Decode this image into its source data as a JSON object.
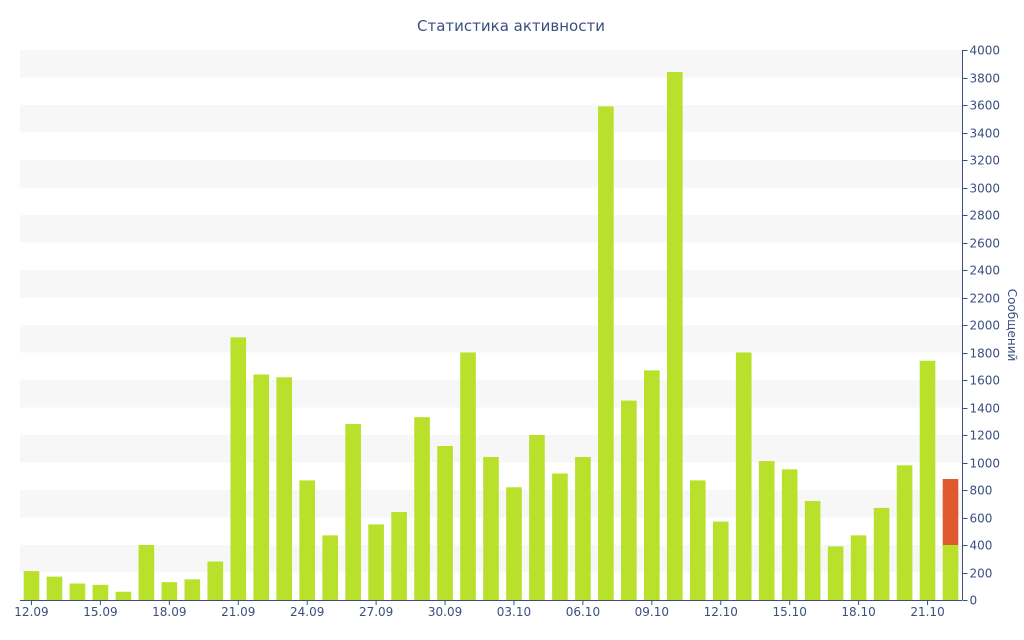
{
  "chart_data": {
    "type": "bar",
    "title": "Статистика активности",
    "xlabel": "",
    "ylabel": "Сообщений",
    "ylim": [
      0,
      4000
    ],
    "y_ticks": [
      0,
      200,
      400,
      600,
      800,
      1000,
      1200,
      1400,
      1600,
      1800,
      2000,
      2200,
      2400,
      2600,
      2800,
      3000,
      3200,
      3400,
      3600,
      3800,
      4000
    ],
    "y_axis_side": "right",
    "grid": "horizontal alternating bands",
    "legend": "none",
    "categories": [
      "12.09",
      "13.09",
      "14.09",
      "15.09",
      "16.09",
      "17.09",
      "18.09",
      "19.09",
      "20.09",
      "21.09",
      "22.09",
      "23.09",
      "24.09",
      "25.09",
      "26.09",
      "27.09",
      "28.09",
      "29.09",
      "30.09",
      "01.10",
      "02.10",
      "03.10",
      "04.10",
      "05.10",
      "06.10",
      "07.10",
      "08.10",
      "09.10",
      "10.10",
      "11.10",
      "12.10",
      "13.10",
      "14.10",
      "15.10",
      "16.10",
      "17.10",
      "18.10",
      "19.10",
      "20.10",
      "21.10",
      "22.10"
    ],
    "x_tick_labels": [
      "12.09",
      "15.09",
      "18.09",
      "21.09",
      "24.09",
      "27.09",
      "30.09",
      "03.10",
      "06.10",
      "09.10",
      "12.10",
      "15.10",
      "18.10",
      "21.10"
    ],
    "series": [
      {
        "values": [
          210,
          170,
          120,
          110,
          60,
          400,
          130,
          150,
          280,
          1910,
          1640,
          1620,
          870,
          470,
          1280,
          550,
          640,
          1330,
          1120,
          1800,
          1040,
          820,
          1200,
          920,
          1040,
          3590,
          1450,
          1670,
          3840,
          870,
          570,
          1800,
          1010,
          950,
          720,
          390,
          470,
          670,
          980,
          1740,
          400
        ],
        "color": "#b9e02b"
      },
      {
        "values": [
          0,
          0,
          0,
          0,
          0,
          0,
          0,
          0,
          0,
          0,
          0,
          0,
          0,
          0,
          0,
          0,
          0,
          0,
          0,
          0,
          0,
          0,
          0,
          0,
          0,
          0,
          0,
          0,
          0,
          0,
          0,
          0,
          0,
          0,
          0,
          0,
          0,
          0,
          0,
          0,
          480
        ],
        "color": "#e05a30"
      }
    ],
    "colors": {
      "text": "#3b4f7f",
      "axis": "#3b4f7f",
      "band": "#f7f7f7"
    }
  }
}
